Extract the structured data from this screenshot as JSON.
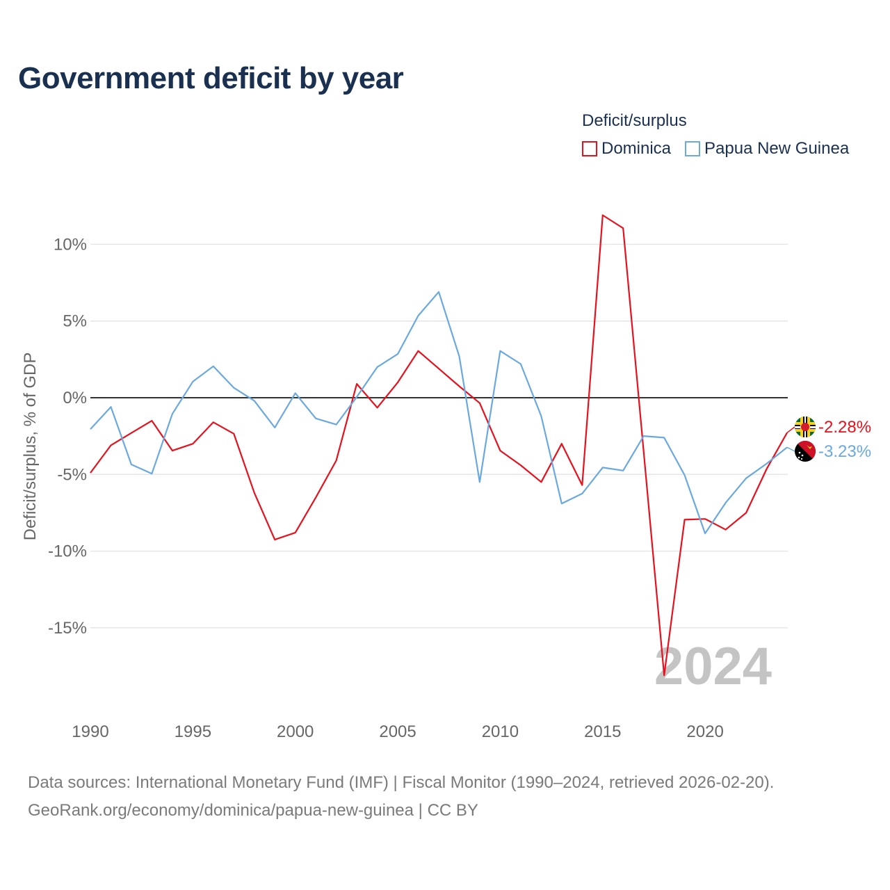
{
  "title": "Government deficit by year",
  "legend": {
    "title": "Deficit/surplus",
    "items": [
      {
        "name": "Dominica",
        "color": "#e8101c"
      },
      {
        "name": "Papua New Guinea",
        "color": "#6aa8e0"
      }
    ]
  },
  "chart_data": {
    "type": "line",
    "title": "Government deficit by year",
    "xlabel": "",
    "ylabel": "Deficit/surplus, % of GDP",
    "xlim": [
      1990,
      2024
    ],
    "ylim": [
      -19,
      12
    ],
    "x_ticks": [
      1990,
      1995,
      2000,
      2005,
      2010,
      2015,
      2020
    ],
    "x_tick_labels": [
      "1990",
      "1995",
      "2000",
      "2005",
      "2010",
      "2015",
      "2020"
    ],
    "y_ticks": [
      10,
      5,
      0,
      -5,
      -10,
      -15
    ],
    "y_tick_labels": [
      "10%",
      "5%",
      "0%",
      "-5%",
      "-10%",
      "-15%"
    ],
    "grid": true,
    "zero_line": true,
    "watermark_year": "2024",
    "x": [
      1990,
      1991,
      1992,
      1993,
      1994,
      1995,
      1996,
      1997,
      1998,
      1999,
      2000,
      2001,
      2002,
      2003,
      2004,
      2005,
      2006,
      2007,
      2008,
      2009,
      2010,
      2011,
      2012,
      2013,
      2014,
      2015,
      2016,
      2017,
      2018,
      2019,
      2020,
      2021,
      2022,
      2023,
      2024
    ],
    "series": [
      {
        "name": "Dominica",
        "color": "#e8101c",
        "end_label": "-2.28%",
        "flag": "dominica-flag-icon",
        "values": [
          -4.9,
          -3.1,
          -2.3,
          -1.5,
          -3.45,
          -3.0,
          -1.6,
          -2.35,
          -6.2,
          -9.25,
          -8.8,
          -6.5,
          -4.1,
          0.9,
          -0.65,
          1.0,
          3.05,
          1.9,
          0.75,
          -0.35,
          -3.45,
          -4.4,
          -5.5,
          -3.0,
          -5.7,
          11.9,
          11.05,
          -3.5,
          -18.1,
          -7.95,
          -7.9,
          -8.6,
          -7.5,
          -4.65,
          -2.28
        ]
      },
      {
        "name": "Papua New Guinea",
        "color": "#6aa8e0",
        "end_label": "-3.23%",
        "flag": "papua-new-guinea-flag-icon",
        "values": [
          -2.05,
          -0.6,
          -4.35,
          -4.95,
          -1.05,
          1.05,
          2.05,
          0.65,
          -0.2,
          -1.95,
          0.3,
          -1.35,
          -1.75,
          0.05,
          2.0,
          2.85,
          5.35,
          6.9,
          2.7,
          -5.5,
          3.05,
          2.2,
          -1.2,
          -6.9,
          -6.25,
          -4.55,
          -4.75,
          -2.5,
          -2.6,
          -5.05,
          -8.85,
          -6.85,
          -5.25,
          -4.3,
          -3.23
        ]
      }
    ]
  },
  "footer": {
    "line1": "Data sources: International Monetary Fund (IMF) | Fiscal Monitor (1990–2024, retrieved 2026-02-20).",
    "line2": "GeoRank.org/economy/dominica/papua-new-guinea | CC BY"
  }
}
